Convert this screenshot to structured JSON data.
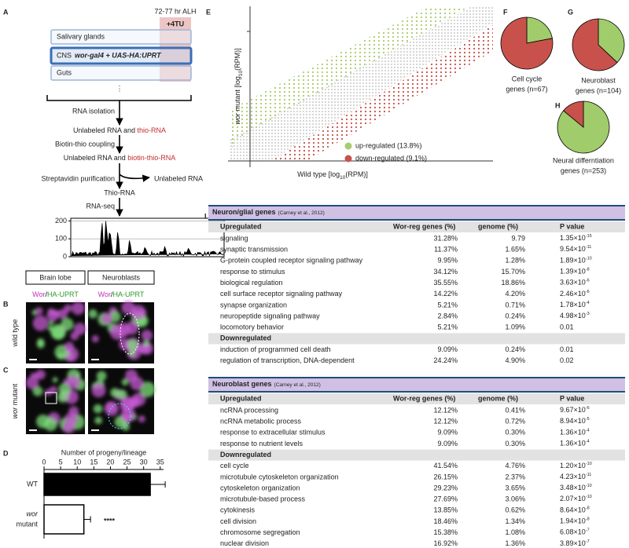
{
  "panel_labels": [
    "A",
    "B",
    "C",
    "D",
    "E",
    "F",
    "G",
    "H",
    "I"
  ],
  "schematic": {
    "time": "72-77 hr ALH",
    "treatment": "+4TU",
    "tissues": [
      "Salivary glands",
      "CNS",
      "Guts"
    ],
    "driver": "wor-gal4 + UAS-HA:UPRT",
    "ellipsis": "⋮",
    "isolation": "RNA isolation",
    "product1": [
      "Unlabeled RNA and ",
      "thio-RNA"
    ],
    "coupling": "Biotin-thio coupling",
    "product2": [
      "Unlabeled RNA and ",
      "biotin-thio-RNA"
    ],
    "purification": "Streptavidin purification",
    "discarded": "Unlabeled RNA",
    "product3": "Thio-RNA",
    "sequencing": "RNA-seq",
    "trace": {
      "ylim": [
        0,
        215
      ],
      "yticks": [
        0,
        100,
        200
      ]
    }
  },
  "imaging": {
    "columns": [
      "Brain lobe",
      "Neuroblasts"
    ],
    "stain": [
      "Wor",
      "/",
      "HA-UPRT"
    ],
    "rows": [
      [
        "wild type"
      ],
      [
        "wor",
        " mutant"
      ]
    ]
  },
  "chart_data": {
    "type": "bar",
    "orientation": "horizontal",
    "title": "Number of progeny/lineage",
    "categories": [
      [
        "WT"
      ],
      [
        "wor",
        "mutant"
      ]
    ],
    "values": [
      32,
      12
    ],
    "errors": [
      4.5,
      2
    ],
    "colors": [
      "#000000",
      "#ffffff"
    ],
    "xlim": [
      0,
      36
    ],
    "xticks": [
      0,
      5,
      10,
      15,
      20,
      25,
      30,
      35
    ],
    "annotation": "****"
  },
  "scatter": {
    "ylabel": [
      "wor",
      " mutant [log",
      "10",
      "(RPM)]"
    ],
    "xlabel": [
      "Wild type [log",
      "10",
      "(RPM)]"
    ],
    "legend": [
      {
        "label": "up-regulated (13.8%)",
        "color": "#a8cc6e"
      },
      {
        "label": "down-regulated (9.1%)",
        "color": "#c9514c"
      }
    ]
  },
  "pies": [
    {
      "label": [
        "Cell cycle",
        "genes (n=67)"
      ],
      "values": [
        22,
        78
      ],
      "colors": [
        "#a0cc6c",
        "#c9514c"
      ]
    },
    {
      "label": [
        "Neuroblast",
        "genes (n=104)"
      ],
      "values": [
        37,
        63
      ],
      "colors": [
        "#a0cc6c",
        "#c9514c"
      ]
    },
    {
      "label": [
        "Neural differntiation",
        "genes (n=253)"
      ],
      "values": [
        86,
        14
      ],
      "colors": [
        "#a0cc6c",
        "#c9514c"
      ]
    }
  ],
  "tables": [
    {
      "title": "Neuron/glial genes",
      "citation": "(Carney et al., 2012)",
      "columns": [
        "Upregulated",
        "Wor-reg genes (%)",
        "genome (%)",
        "P value"
      ],
      "up_rows": [
        [
          "signaling",
          "31.28%",
          "9.79",
          [
            "1.35×10",
            "-15"
          ]
        ],
        [
          "synaptic transmission",
          "11.37%",
          "1.65%",
          [
            "9.54×10",
            "-11"
          ]
        ],
        [
          "G-protein coupled receptor signaling pathway",
          "9.95%",
          "1.28%",
          [
            "1.89×10",
            "-10"
          ]
        ],
        [
          "response to stimulus",
          "34.12%",
          "15.70%",
          [
            "1.39×10",
            "-8"
          ]
        ],
        [
          "biological regulation",
          "35.55%",
          "18.86%",
          [
            "3.63×10",
            "-6"
          ]
        ],
        [
          "cell surface receptor signaling pathway",
          "14.22%",
          "4.20%",
          [
            "2.46×10",
            "-6"
          ]
        ],
        [
          "synapse organization",
          "5.21%",
          "0.71%",
          [
            "1.78×10",
            "-4"
          ]
        ],
        [
          "neuropeptide signaling pathway",
          "2.84%",
          "0.24%",
          [
            "4.98×10",
            "-3"
          ]
        ],
        [
          "locomotory behavior",
          "5.21%",
          "1.09%",
          "0.01"
        ]
      ],
      "down_label": "Downregulated",
      "down_rows": [
        [
          "induction of programmed cell death",
          "9.09%",
          "0.24%",
          "0.01"
        ],
        [
          "regulation of transcription, DNA-dependent",
          "24.24%",
          "4.90%",
          "0.02"
        ]
      ]
    },
    {
      "title": "Neuroblast genes",
      "citation": "(Carney et al., 2012)",
      "columns": [
        "Upregulated",
        "Wor-reg genes (%)",
        "genome (%)",
        "P value"
      ],
      "up_rows": [
        [
          "ncRNA processing",
          "12.12%",
          "0.41%",
          [
            "9.67×10",
            "-6"
          ]
        ],
        [
          "ncRNA metabolic process",
          "12.12%",
          "0.72%",
          [
            "8.94×10",
            "-5"
          ]
        ],
        [
          "response to extracellular stimulus",
          "9.09%",
          "0.30%",
          [
            "1.36×10",
            "-4"
          ]
        ],
        [
          "response to nutrient levels",
          "9.09%",
          "0.30%",
          [
            "1.36×10",
            "-4"
          ]
        ]
      ],
      "down_label": "Downregulated",
      "down_rows": [
        [
          "cell cycle",
          "41.54%",
          "4.76%",
          [
            "1.20×10",
            "-10"
          ]
        ],
        [
          "microtubule cytoskeleton organization",
          "26.15%",
          "2.37%",
          [
            "4.23×10",
            "-11"
          ]
        ],
        [
          "cytoskeleton organization",
          "29.23%",
          "3.65%",
          [
            "3.48×10",
            "-10"
          ]
        ],
        [
          "microtubule-based process",
          "27.69%",
          "3.06%",
          [
            "2.07×10",
            "-10"
          ]
        ],
        [
          "cytokinesis",
          "13.85%",
          "0.62%",
          [
            "8.64×10",
            "-8"
          ]
        ],
        [
          "cell division",
          "18.46%",
          "1.34%",
          [
            "1.94×10",
            "-8"
          ]
        ],
        [
          "chromosome segregation",
          "15.38%",
          "1.08%",
          [
            "6.08×10",
            "-7"
          ]
        ],
        [
          "nuclear division",
          "16.92%",
          "1.36%",
          [
            "3.89×10",
            "-7"
          ]
        ]
      ]
    }
  ]
}
